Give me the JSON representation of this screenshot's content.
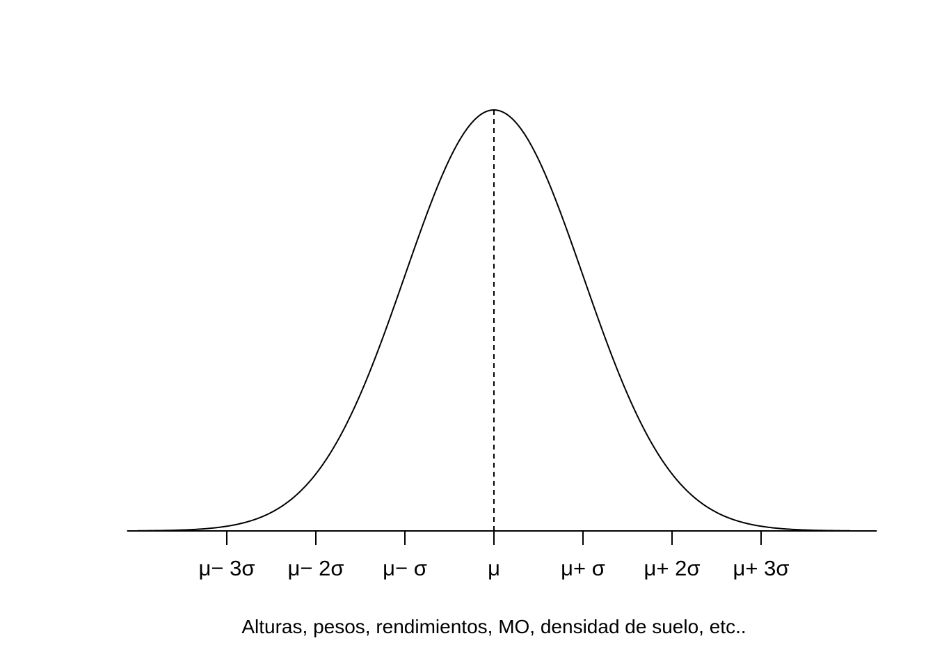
{
  "chart_data": {
    "type": "line",
    "title": "",
    "xlabel": "Alturas, pesos, rendimientos, MO, densidad de suelo, etc..",
    "ylabel": "",
    "distribution": "normal",
    "mean": 0,
    "sd": 1,
    "xlim": [
      -4.12,
      4.3
    ],
    "x_range_curve": [
      -4,
      4
    ],
    "ylim": [
      0,
      0.399
    ],
    "grid": false,
    "legend": "none",
    "ticks": [
      {
        "value": -3,
        "label": "μ− 3σ"
      },
      {
        "value": -2,
        "label": "μ− 2σ"
      },
      {
        "value": -1,
        "label": "μ− σ"
      },
      {
        "value": 0,
        "label": "μ"
      },
      {
        "value": 1,
        "label": "μ+ σ"
      },
      {
        "value": 2,
        "label": "μ+ 2σ"
      },
      {
        "value": 3,
        "label": "μ+ 3σ"
      }
    ],
    "reference_line": {
      "x": 0,
      "style": "dashed"
    },
    "colors": {
      "curve": "#000000",
      "axis": "#000000",
      "background": "#ffffff"
    }
  }
}
